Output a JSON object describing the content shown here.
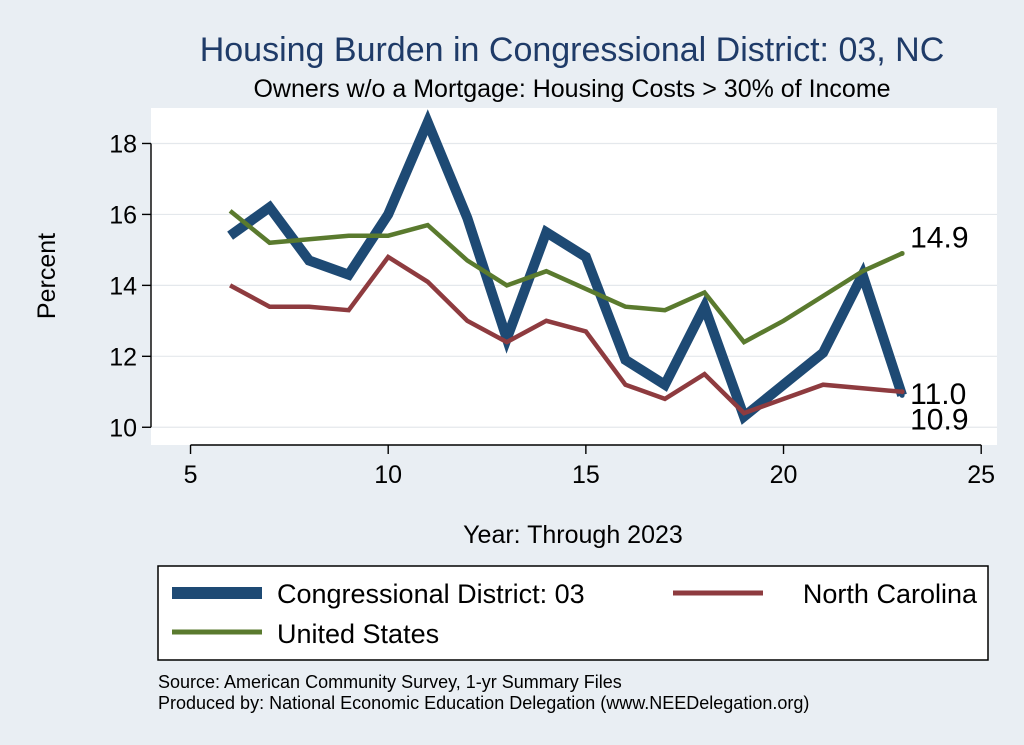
{
  "chart_data": {
    "type": "line",
    "title": "Housing Burden in Congressional District:  03, NC",
    "subtitle": "Owners w/o a Mortgage: Housing Costs > 30% of Income",
    "xlabel": "Year: Through 2023",
    "ylabel": "Percent",
    "xlim": [
      4,
      25.4
    ],
    "ylim": [
      9.5,
      19
    ],
    "x_ticks": [
      5,
      10,
      15,
      20,
      25
    ],
    "y_ticks": [
      10,
      12,
      14,
      16,
      18
    ],
    "grid": true,
    "legend_position": "bottom",
    "series": [
      {
        "name": "Congressional District:  03",
        "color": "#1e4a74",
        "x": [
          6,
          7,
          8,
          9,
          10,
          11,
          12,
          13,
          14,
          15,
          16,
          17,
          18,
          19,
          20,
          21,
          22,
          23
        ],
        "values": [
          15.4,
          16.2,
          14.7,
          14.3,
          16.0,
          18.6,
          15.9,
          12.5,
          15.5,
          14.8,
          11.9,
          11.2,
          13.4,
          10.3,
          11.2,
          12.1,
          14.3,
          10.9
        ],
        "end_label": "10.9"
      },
      {
        "name": "North Carolina",
        "color": "#8e3b3f",
        "x": [
          6,
          7,
          8,
          9,
          10,
          11,
          12,
          13,
          14,
          15,
          16,
          17,
          18,
          19,
          20,
          21,
          22,
          23
        ],
        "values": [
          14.0,
          13.4,
          13.4,
          13.3,
          14.8,
          14.1,
          13.0,
          12.4,
          13.0,
          12.7,
          11.2,
          10.8,
          11.5,
          10.4,
          10.8,
          11.2,
          11.1,
          11.0
        ],
        "end_label": "11.0"
      },
      {
        "name": "United States",
        "color": "#5a7a2e",
        "x": [
          6,
          7,
          8,
          9,
          10,
          11,
          12,
          13,
          14,
          15,
          16,
          17,
          18,
          19,
          20,
          21,
          22,
          23
        ],
        "values": [
          16.1,
          15.2,
          15.3,
          15.4,
          15.4,
          15.7,
          14.7,
          14.0,
          14.4,
          13.9,
          13.4,
          13.3,
          13.8,
          12.4,
          13.0,
          13.7,
          14.4,
          14.9
        ],
        "end_label": "14.9"
      }
    ],
    "notes": [
      "Source: American Community Survey, 1-yr Summary Files",
      "Produced by: National Economic Education Delegation (www.NEEDelegation.org)"
    ]
  }
}
